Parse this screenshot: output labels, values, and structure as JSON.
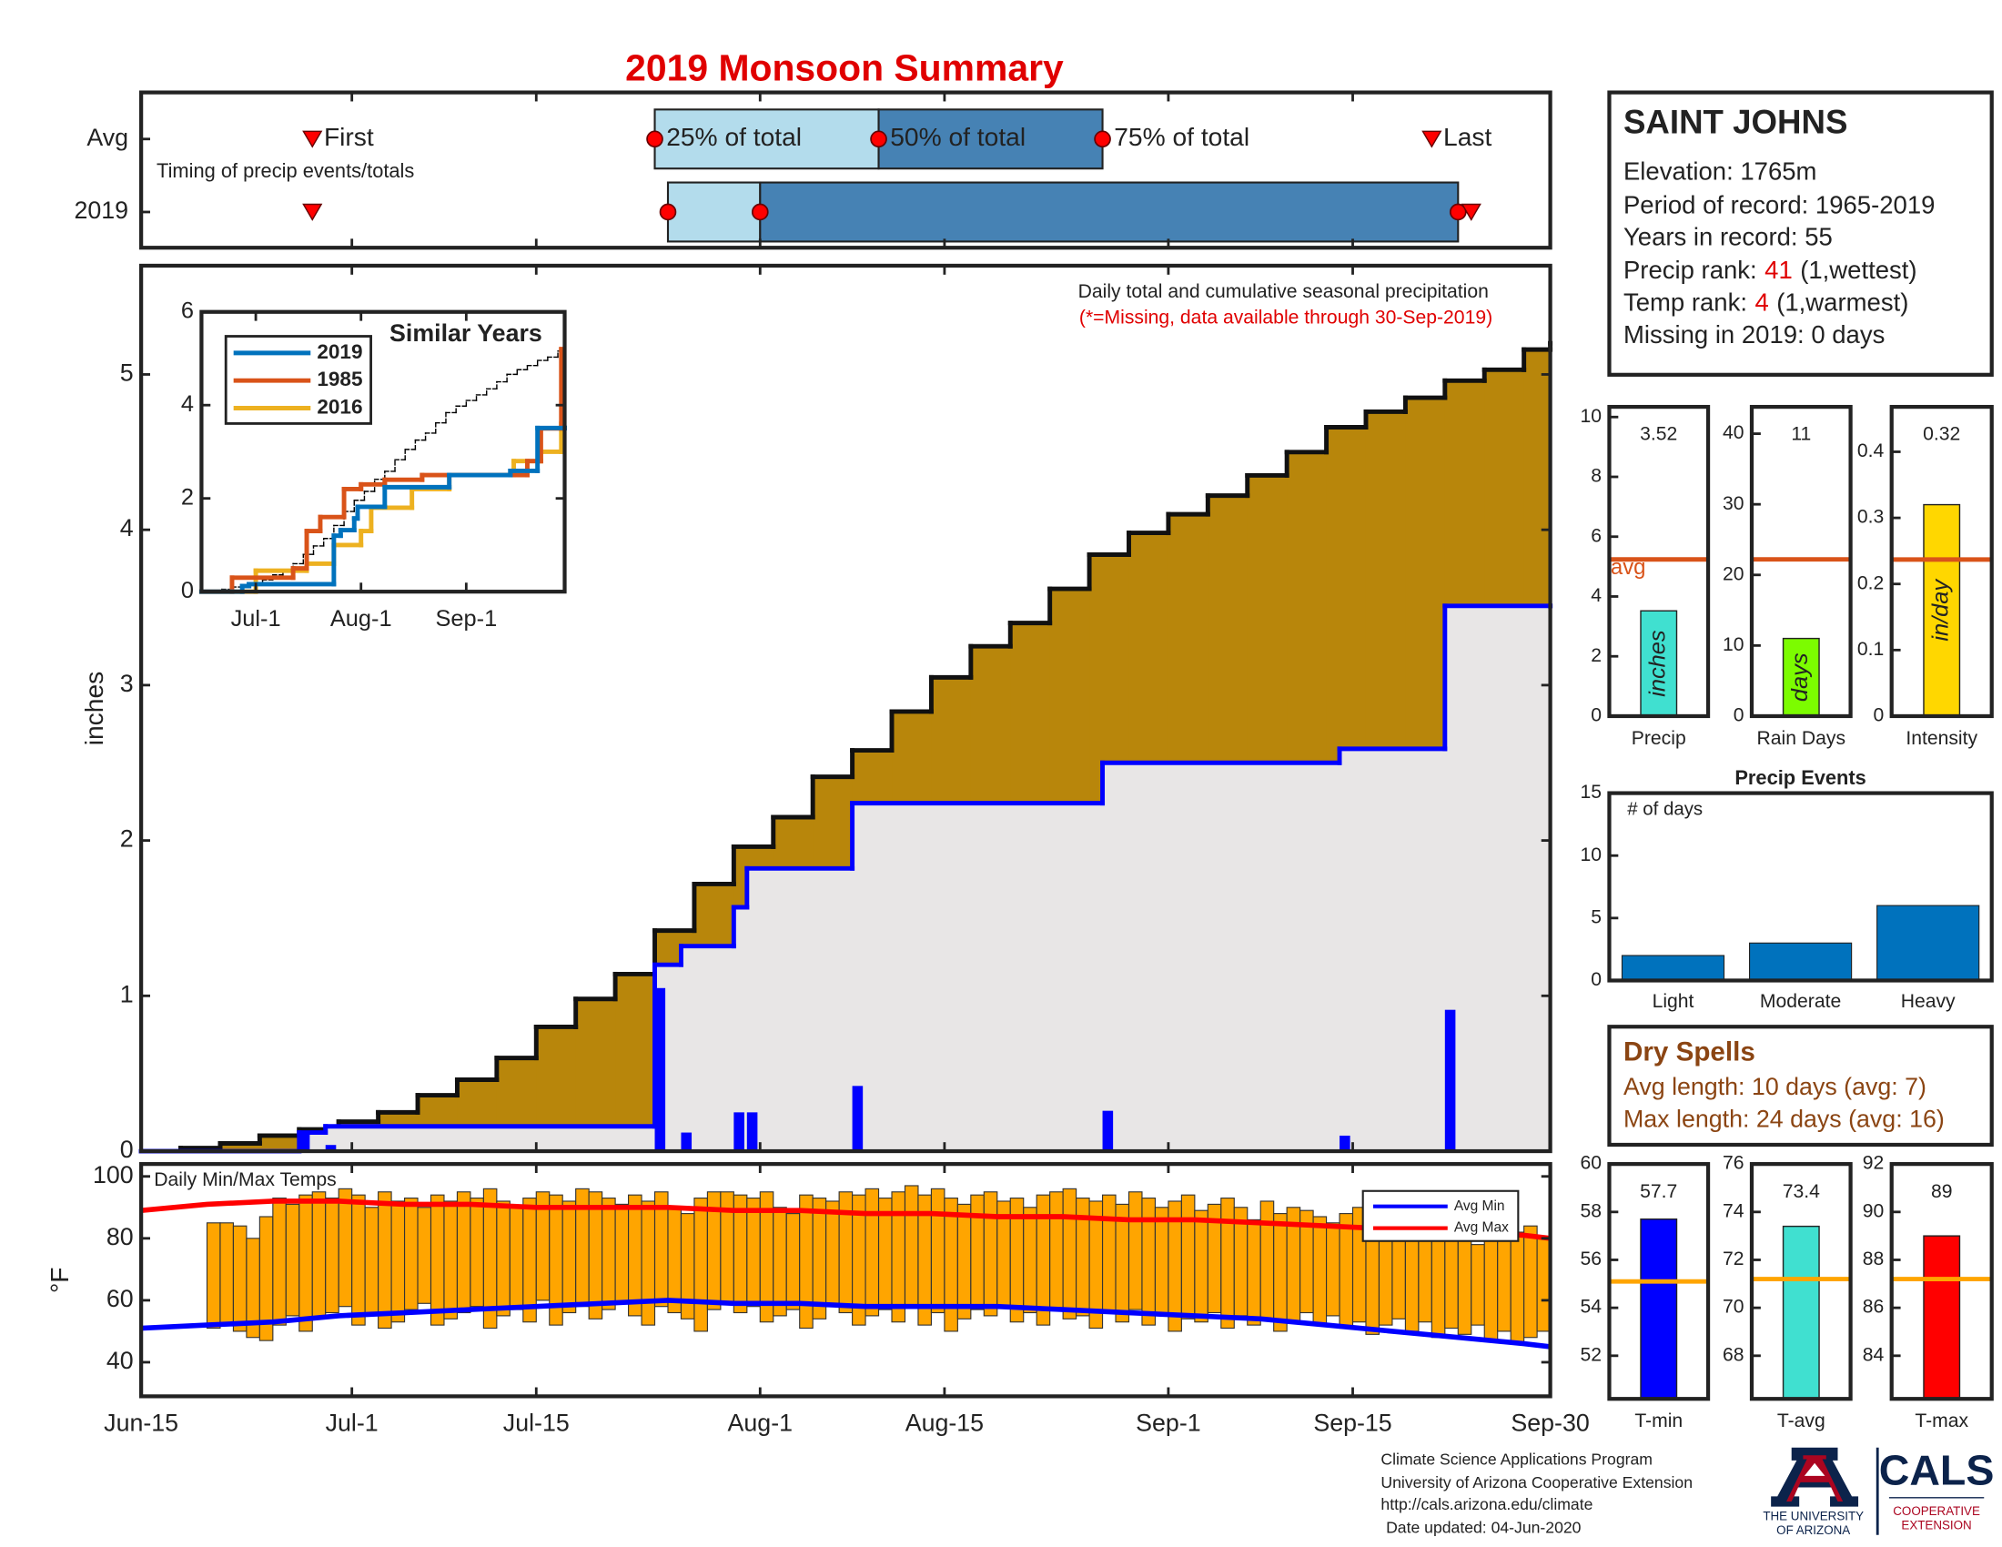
{
  "title": "2019 Monsoon Summary",
  "chart_data": [
    {
      "type": "timing",
      "annotation": "Timing of precip events/totals",
      "xlim": [
        0,
        107
      ],
      "categories": [
        "Avg",
        "2019"
      ],
      "colors": [
        "#b3dcec",
        "#4682b4"
      ],
      "marker_color": "#ff0000",
      "series": [
        {
          "name": "First",
          "values": [
            13,
            13
          ]
        },
        {
          "name": "25% of total",
          "values": [
            39,
            40
          ]
        },
        {
          "name": "50% of total",
          "values": [
            56,
            47
          ]
        },
        {
          "name": "75% of total",
          "values": [
            73,
            100
          ]
        },
        {
          "name": "Last",
          "values": [
            98,
            101
          ]
        }
      ]
    },
    {
      "type": "cumulative",
      "annotations": [
        "Daily total and cumulative seasonal precipitation",
        "(*=Missing, data available through 30-Sep-2019)"
      ],
      "ylabel": "inches",
      "xlim": [
        0,
        107
      ],
      "ylim": [
        0,
        5.7
      ],
      "yticks": [
        0,
        1,
        2,
        3,
        4,
        5
      ],
      "average": {
        "color": "#b8860b",
        "outline": "#111111",
        "x": [
          0,
          3,
          6,
          9,
          12,
          15,
          18,
          21,
          24,
          27,
          30,
          33,
          36,
          39,
          42,
          45,
          48,
          51,
          54,
          57,
          60,
          63,
          66,
          69,
          72,
          75,
          78,
          81,
          84,
          87,
          90,
          93,
          96,
          99,
          102,
          105,
          107
        ],
        "values": [
          0,
          0.02,
          0.05,
          0.1,
          0.14,
          0.19,
          0.25,
          0.36,
          0.46,
          0.6,
          0.8,
          0.98,
          1.14,
          1.42,
          1.72,
          1.96,
          2.15,
          2.41,
          2.58,
          2.83,
          3.05,
          3.25,
          3.4,
          3.62,
          3.84,
          3.98,
          4.1,
          4.22,
          4.35,
          4.5,
          4.66,
          4.76,
          4.85,
          4.96,
          5.03,
          5.16,
          5.2
        ]
      },
      "cumulative": {
        "color": "#0000ff",
        "fill": "#e8e6e6",
        "x": [
          0,
          12,
          14,
          39,
          41,
          45,
          46,
          54,
          73,
          91,
          99,
          107
        ],
        "values": [
          0,
          0.12,
          0.16,
          1.2,
          1.32,
          1.57,
          1.82,
          2.24,
          2.5,
          2.59,
          3.51,
          3.51
        ]
      },
      "daily": {
        "color": "#0000ff",
        "x": [
          12,
          14,
          39,
          41,
          45,
          46,
          54,
          73,
          91,
          99
        ],
        "values": [
          0.12,
          0.04,
          1.05,
          0.12,
          0.25,
          0.25,
          0.42,
          0.26,
          0.1,
          0.91
        ]
      }
    },
    {
      "type": "line",
      "title": "Similar Years",
      "xlim": [
        0,
        107
      ],
      "xticks": [
        {
          "value": 16,
          "label": "Jul-1"
        },
        {
          "value": 47,
          "label": "Aug-1"
        },
        {
          "value": 78,
          "label": "Sep-1"
        }
      ],
      "ylim": [
        0,
        6
      ],
      "yticks": [
        0,
        2,
        4,
        6
      ],
      "average": {
        "color": "#000000",
        "x": [
          0,
          3,
          6,
          9,
          12,
          15,
          18,
          21,
          24,
          27,
          30,
          33,
          36,
          39,
          42,
          45,
          48,
          51,
          54,
          57,
          60,
          63,
          66,
          69,
          72,
          75,
          78,
          81,
          84,
          87,
          90,
          93,
          96,
          99,
          102,
          105,
          107
        ],
        "values": [
          0,
          0.02,
          0.05,
          0.1,
          0.14,
          0.19,
          0.25,
          0.36,
          0.46,
          0.6,
          0.8,
          0.98,
          1.14,
          1.42,
          1.72,
          1.96,
          2.15,
          2.41,
          2.58,
          2.83,
          3.05,
          3.25,
          3.4,
          3.62,
          3.84,
          3.98,
          4.1,
          4.22,
          4.35,
          4.5,
          4.66,
          4.76,
          4.85,
          4.96,
          5.03,
          5.16,
          5.2
        ]
      },
      "series": [
        {
          "name": "2019",
          "color": "#0072bd",
          "x": [
            0,
            12,
            14,
            39,
            41,
            45,
            46,
            54,
            73,
            91,
            99,
            107
          ],
          "values": [
            0,
            0.12,
            0.16,
            1.2,
            1.32,
            1.57,
            1.82,
            2.24,
            2.5,
            2.59,
            3.51,
            3.51
          ]
        },
        {
          "name": "1985",
          "color": "#d95319",
          "x": [
            0,
            9,
            27,
            31,
            35,
            42,
            47,
            54,
            65,
            96,
            100,
            106
          ],
          "values": [
            0,
            0.3,
            0.5,
            1.3,
            1.6,
            2.2,
            2.3,
            2.4,
            2.5,
            2.8,
            3.5,
            5.2
          ]
        },
        {
          "name": "2016",
          "color": "#edb120",
          "x": [
            0,
            16,
            31,
            39,
            47,
            50,
            62,
            73,
            92,
            100,
            106
          ],
          "values": [
            0,
            0.45,
            0.6,
            1.0,
            1.3,
            1.8,
            2.2,
            2.5,
            2.8,
            3.0,
            3.6
          ]
        }
      ]
    },
    {
      "type": "range_bar",
      "annotation": "Daily Min/Max Temps",
      "ylabel": "°F",
      "xlim": [
        0,
        107
      ],
      "xticks": [
        {
          "value": 0,
          "label": "Jun-15"
        },
        {
          "value": 16,
          "label": "Jul-1"
        },
        {
          "value": 30,
          "label": "Jul-15"
        },
        {
          "value": 47,
          "label": "Aug-1"
        },
        {
          "value": 61,
          "label": "Aug-15"
        },
        {
          "value": 78,
          "label": "Sep-1"
        },
        {
          "value": 92,
          "label": "Sep-15"
        },
        {
          "value": 107,
          "label": "Sep-30"
        }
      ],
      "ylim": [
        29,
        104
      ],
      "yticks": [
        40,
        60,
        80,
        100
      ],
      "bar_color": "#ffa500",
      "legend": "upper right",
      "x": [
        5,
        6,
        7,
        8,
        9,
        10,
        11,
        12,
        13,
        14,
        15,
        16,
        17,
        18,
        19,
        20,
        21,
        22,
        23,
        24,
        25,
        26,
        27,
        28,
        29,
        30,
        31,
        32,
        33,
        34,
        35,
        36,
        37,
        38,
        39,
        40,
        41,
        42,
        43,
        44,
        45,
        46,
        47,
        48,
        49,
        50,
        51,
        52,
        53,
        54,
        55,
        56,
        57,
        58,
        59,
        60,
        61,
        62,
        63,
        64,
        65,
        66,
        67,
        68,
        69,
        70,
        71,
        72,
        73,
        74,
        75,
        76,
        77,
        78,
        79,
        80,
        81,
        82,
        83,
        84,
        85,
        86,
        87,
        88,
        89,
        90,
        91,
        92,
        93,
        94,
        95,
        96,
        97,
        98,
        99,
        100,
        101,
        102,
        103,
        104,
        105,
        106
      ],
      "max": [
        85,
        85,
        84,
        80,
        87,
        93,
        91,
        94,
        95,
        93,
        96,
        94,
        90,
        95,
        92,
        93,
        90,
        94,
        92,
        95,
        93,
        96,
        92,
        90,
        93,
        95,
        94,
        92,
        96,
        95,
        93,
        91,
        94,
        92,
        95,
        90,
        88,
        93,
        95,
        95,
        94,
        93,
        95,
        90,
        88,
        94,
        93,
        92,
        95,
        94,
        96,
        93,
        95,
        97,
        94,
        96,
        93,
        91,
        94,
        95,
        92,
        93,
        90,
        94,
        95,
        96,
        93,
        92,
        94,
        91,
        95,
        93,
        90,
        92,
        94,
        89,
        91,
        93,
        90,
        86,
        92,
        88,
        90,
        89,
        87,
        85,
        88,
        90,
        86,
        84,
        87,
        82,
        88,
        85,
        86,
        84,
        78,
        83,
        85,
        82,
        84,
        80
      ],
      "min": [
        51,
        52,
        50,
        48,
        47,
        52,
        55,
        50,
        54,
        56,
        58,
        52,
        55,
        51,
        53,
        57,
        59,
        52,
        54,
        56,
        58,
        51,
        55,
        57,
        53,
        60,
        52,
        56,
        58,
        54,
        57,
        59,
        55,
        52,
        58,
        56,
        54,
        50,
        57,
        59,
        56,
        58,
        53,
        55,
        57,
        51,
        54,
        58,
        56,
        52,
        55,
        57,
        53,
        58,
        52,
        56,
        50,
        54,
        57,
        55,
        58,
        53,
        56,
        52,
        57,
        54,
        55,
        51,
        56,
        53,
        57,
        52,
        55,
        50,
        54,
        53,
        56,
        51,
        55,
        52,
        54,
        50,
        53,
        56,
        52,
        55,
        51,
        53,
        49,
        52,
        54,
        50,
        53,
        48,
        51,
        49,
        52,
        47,
        50,
        46,
        48,
        50
      ],
      "series": [
        {
          "name": "Avg Min",
          "color": "#0000ff",
          "x": [
            0,
            5,
            10,
            15,
            20,
            25,
            30,
            35,
            40,
            45,
            50,
            55,
            60,
            65,
            70,
            75,
            80,
            85,
            90,
            95,
            100,
            105,
            107
          ],
          "values": [
            51,
            52,
            53,
            55,
            56,
            57,
            58,
            59,
            60,
            59,
            59,
            58,
            58,
            58,
            57,
            56,
            55,
            54,
            52,
            50,
            48,
            46,
            45
          ]
        },
        {
          "name": "Avg Max",
          "color": "#ff0000",
          "x": [
            0,
            5,
            10,
            15,
            20,
            25,
            30,
            35,
            40,
            45,
            50,
            55,
            60,
            65,
            70,
            75,
            80,
            85,
            90,
            95,
            100,
            105,
            107
          ],
          "values": [
            89,
            91,
            92,
            92,
            91,
            91,
            90,
            90,
            90,
            89,
            89,
            88,
            88,
            87,
            87,
            86,
            86,
            85,
            84,
            83,
            82,
            81,
            80
          ]
        }
      ]
    },
    {
      "type": "summary_bar",
      "categories": [
        "Precip"
      ],
      "values": [
        3.52
      ],
      "average": 5.24,
      "average_label": "avg",
      "unit_label": "inches",
      "color": "#40e0d0",
      "average_color": "#d95319",
      "ylim": [
        0,
        10.34
      ],
      "yticks": [
        0,
        2,
        4,
        6,
        8,
        10
      ]
    },
    {
      "type": "summary_bar",
      "categories": [
        "Rain Days"
      ],
      "values": [
        11
      ],
      "average": 22.2,
      "unit_label": "days",
      "color": "#7cfc00",
      "average_color": "#d95319",
      "ylim": [
        0,
        43.8
      ],
      "yticks": [
        0,
        10,
        20,
        30,
        40
      ]
    },
    {
      "type": "summary_bar",
      "categories": [
        "Intensity"
      ],
      "values": [
        0.32
      ],
      "average": 0.237,
      "unit_label": "in/day",
      "color": "#ffd700",
      "average_color": "#d95319",
      "ylim": [
        0,
        0.468
      ],
      "yticks": [
        0,
        0.1,
        0.2,
        0.3,
        0.4
      ]
    },
    {
      "type": "bar",
      "title": "Precip Events",
      "annotation": "# of days",
      "categories": [
        "Light",
        "Moderate",
        "Heavy"
      ],
      "values": [
        2,
        3,
        6
      ],
      "color": "#0072bd",
      "ylim": [
        0,
        15
      ],
      "yticks": [
        0,
        5,
        10,
        15
      ]
    },
    {
      "type": "summary_bar",
      "categories": [
        "T-min"
      ],
      "values": [
        57.7
      ],
      "average": 55.1,
      "color": "#0000ff",
      "average_color": "#ffa500",
      "ylim": [
        50.2,
        60
      ],
      "yticks": [
        52,
        54,
        56,
        58,
        60
      ]
    },
    {
      "type": "summary_bar",
      "categories": [
        "T-avg"
      ],
      "values": [
        73.4
      ],
      "average": 71.2,
      "color": "#40e0d0",
      "average_color": "#ffa500",
      "ylim": [
        66.2,
        76
      ],
      "yticks": [
        68,
        70,
        72,
        74,
        76
      ]
    },
    {
      "type": "summary_bar",
      "categories": [
        "T-max"
      ],
      "values": [
        89
      ],
      "average": 87.2,
      "color": "#ff0000",
      "average_color": "#ffa500",
      "ylim": [
        82.2,
        92
      ],
      "yticks": [
        84,
        86,
        88,
        90,
        92
      ]
    }
  ],
  "station": {
    "name": "SAINT JOHNS",
    "lines": [
      "Elevation: 1765m",
      "Period of record: 1965-2019",
      "Years in record: 55"
    ],
    "precip_rank": {
      "label": "Precip rank:",
      "value": 41,
      "note": "(1,wettest)"
    },
    "temp_rank": {
      "label": "Temp rank:",
      "value": 4,
      "note": "(1,warmest)"
    },
    "missing": "Missing in 2019: 0 days"
  },
  "dry_spells": {
    "title": "Dry Spells",
    "lines": [
      "Avg length: 10 days (avg: 7)",
      "Max length: 24 days (avg: 16)"
    ]
  },
  "footer": {
    "lines": [
      "Climate Science Applications Program",
      "University of Arizona Cooperative Extension",
      "http://cals.arizona.edu/climate",
      "Date updated: 04-Jun-2020"
    ]
  },
  "logo": {
    "university": [
      "THE UNIVERSITY",
      "OF ARIZONA"
    ],
    "cals": "CALS",
    "extension": [
      "COOPERATIVE",
      "EXTENSION"
    ]
  }
}
